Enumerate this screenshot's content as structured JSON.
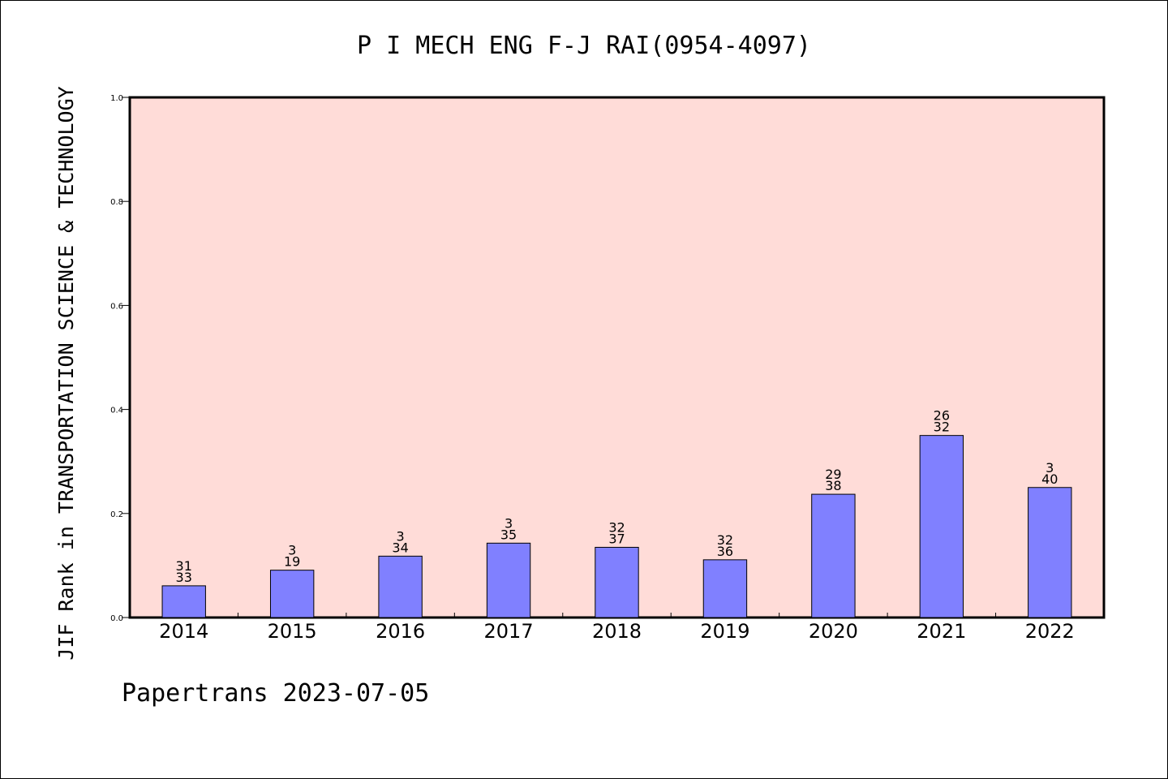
{
  "chart_data": {
    "type": "bar",
    "title": "P I MECH ENG F-J RAI(0954-4097)",
    "ylabel": "JIF Rank in TRANSPORTATION SCIENCE & TECHNOLOGY",
    "xlabel": "",
    "ylim": [
      0,
      1.0
    ],
    "yticks": [
      "0.0",
      "0.2",
      "0.4",
      "0.6",
      "0.8",
      "1.0"
    ],
    "categories": [
      "2014",
      "2015",
      "2016",
      "2017",
      "2018",
      "2019",
      "2020",
      "2021",
      "2022"
    ],
    "values": [
      0.061,
      0.091,
      0.118,
      0.143,
      0.135,
      0.111,
      0.237,
      0.35,
      0.25
    ],
    "labels_top": [
      "31",
      "3",
      "3",
      "3",
      "32",
      "32",
      "29",
      "26",
      "3"
    ],
    "labels_bottom": [
      "33",
      "19",
      "34",
      "35",
      "37",
      "36",
      "38",
      "32",
      "40"
    ],
    "grid": false,
    "bar_color": "#8080ff",
    "plot_background": "#ffdcd8"
  },
  "footer": "Papertrans 2023-07-05"
}
